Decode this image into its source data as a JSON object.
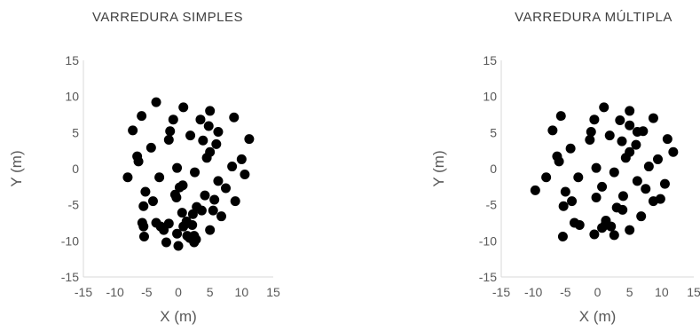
{
  "chart_data": [
    {
      "type": "scatter",
      "title": "VARREDURA SIMPLES",
      "xlabel": "X (m)",
      "ylabel": "Y (m)",
      "xlim": [
        -15,
        15
      ],
      "ylim": [
        -15,
        15
      ],
      "xticks": [
        -15,
        -10,
        -5,
        0,
        5,
        10,
        15
      ],
      "yticks": [
        -15,
        -10,
        -5,
        0,
        5,
        10,
        15
      ],
      "grid": false,
      "color": "#000000",
      "points": [
        [
          -3.5,
          9.2
        ],
        [
          0.8,
          8.5
        ],
        [
          5.0,
          8.0
        ],
        [
          -5.8,
          7.3
        ],
        [
          -0.8,
          6.8
        ],
        [
          3.5,
          6.8
        ],
        [
          8.8,
          7.1
        ],
        [
          -7.2,
          5.3
        ],
        [
          -1.3,
          5.2
        ],
        [
          4.8,
          5.9
        ],
        [
          6.3,
          5.1
        ],
        [
          1.9,
          4.6
        ],
        [
          -1.5,
          4.0
        ],
        [
          3.9,
          3.9
        ],
        [
          6.0,
          3.4
        ],
        [
          11.2,
          4.1
        ],
        [
          -4.3,
          2.9
        ],
        [
          -6.5,
          1.7
        ],
        [
          5.0,
          2.3
        ],
        [
          4.5,
          1.5
        ],
        [
          -6.3,
          1.0
        ],
        [
          10.0,
          1.3
        ],
        [
          8.5,
          0.3
        ],
        [
          -0.2,
          0.1
        ],
        [
          2.6,
          -0.5
        ],
        [
          -8.0,
          -1.2
        ],
        [
          10.5,
          -0.8
        ],
        [
          -3.0,
          -1.2
        ],
        [
          6.3,
          -1.7
        ],
        [
          0.7,
          -2.3
        ],
        [
          0.2,
          -2.6
        ],
        [
          7.5,
          -2.7
        ],
        [
          -5.2,
          -3.2
        ],
        [
          -0.5,
          -3.6
        ],
        [
          4.2,
          -3.7
        ],
        [
          -0.3,
          -4.0
        ],
        [
          9.0,
          -4.5
        ],
        [
          -4.0,
          -4.5
        ],
        [
          5.7,
          -4.3
        ],
        [
          -5.5,
          -5.2
        ],
        [
          2.9,
          -5.3
        ],
        [
          3.7,
          -5.8
        ],
        [
          5.5,
          -5.8
        ],
        [
          0.6,
          -6.1
        ],
        [
          2.3,
          -6.3
        ],
        [
          6.8,
          -6.6
        ],
        [
          -5.7,
          -7.5
        ],
        [
          -3.5,
          -7.5
        ],
        [
          -1.5,
          -7.6
        ],
        [
          1.3,
          -7.3
        ],
        [
          -5.5,
          -8.0
        ],
        [
          -2.8,
          -8.0
        ],
        [
          -2.3,
          -8.5
        ],
        [
          0.8,
          -8.0
        ],
        [
          2.2,
          -7.8
        ],
        [
          5.0,
          -8.5
        ],
        [
          -0.2,
          -9.0
        ],
        [
          1.4,
          -9.3
        ],
        [
          2.5,
          -9.3
        ],
        [
          -5.4,
          -9.4
        ],
        [
          1.8,
          -9.6
        ],
        [
          2.8,
          -9.8
        ],
        [
          -1.9,
          -10.2
        ],
        [
          2.5,
          -10.2
        ],
        [
          0.0,
          -10.7
        ]
      ]
    },
    {
      "type": "scatter",
      "title": "VARREDURA MÚLTIPLA",
      "xlabel": "X (m)",
      "ylabel": "Y (m)",
      "xlim": [
        -15,
        15
      ],
      "ylim": [
        -15,
        15
      ],
      "xticks": [
        -15,
        -10,
        -5,
        0,
        5,
        10,
        15
      ],
      "yticks": [
        -15,
        -10,
        -5,
        0,
        5,
        10,
        15
      ],
      "grid": false,
      "color": "#000000",
      "points": [
        [
          1.0,
          8.5
        ],
        [
          5.0,
          8.0
        ],
        [
          -5.7,
          7.3
        ],
        [
          -0.5,
          6.8
        ],
        [
          3.5,
          6.7
        ],
        [
          8.7,
          7.0
        ],
        [
          -7.0,
          5.3
        ],
        [
          -1.0,
          5.1
        ],
        [
          5.0,
          6.0
        ],
        [
          6.2,
          5.1
        ],
        [
          7.1,
          5.2
        ],
        [
          1.9,
          4.6
        ],
        [
          -1.2,
          4.0
        ],
        [
          3.8,
          3.8
        ],
        [
          6.0,
          3.3
        ],
        [
          10.9,
          4.1
        ],
        [
          -4.2,
          2.8
        ],
        [
          -6.3,
          1.7
        ],
        [
          5.0,
          2.3
        ],
        [
          4.4,
          1.5
        ],
        [
          11.8,
          2.3
        ],
        [
          -6.0,
          1.0
        ],
        [
          9.4,
          1.3
        ],
        [
          8.0,
          0.3
        ],
        [
          -0.2,
          0.1
        ],
        [
          2.6,
          -0.5
        ],
        [
          -8.0,
          -1.2
        ],
        [
          -3.0,
          -1.2
        ],
        [
          6.2,
          -1.7
        ],
        [
          10.5,
          -2.1
        ],
        [
          0.7,
          -2.5
        ],
        [
          7.5,
          -2.8
        ],
        [
          -9.7,
          -3.0
        ],
        [
          -5.0,
          -3.2
        ],
        [
          -0.2,
          -4.0
        ],
        [
          4.0,
          -3.8
        ],
        [
          9.8,
          -4.2
        ],
        [
          -4.0,
          -4.5
        ],
        [
          8.7,
          -4.5
        ],
        [
          -5.3,
          -5.2
        ],
        [
          3.0,
          -5.4
        ],
        [
          3.9,
          -5.7
        ],
        [
          6.8,
          -6.6
        ],
        [
          1.3,
          -7.2
        ],
        [
          -3.6,
          -7.5
        ],
        [
          -2.8,
          -7.8
        ],
        [
          1.2,
          -7.8
        ],
        [
          2.1,
          -8.0
        ],
        [
          0.7,
          -8.2
        ],
        [
          5.0,
          -8.5
        ],
        [
          -0.5,
          -9.1
        ],
        [
          2.6,
          -9.2
        ],
        [
          -5.4,
          -9.4
        ]
      ]
    }
  ]
}
